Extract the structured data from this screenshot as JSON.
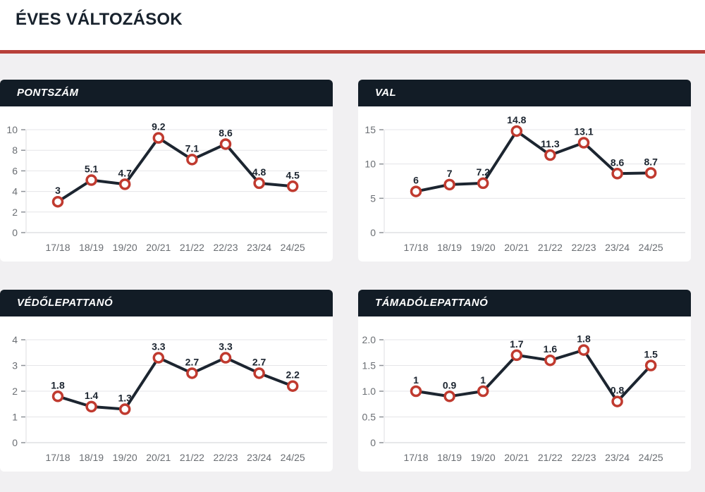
{
  "page_title": "ÉVES VÁLTOZÁSOK",
  "theme": {
    "page_background": "#f1f0f2",
    "band_background": "#ffffff",
    "accent_red": "#b8403a",
    "marker_red": "#c03a2f",
    "panel_header_bg": "#121c26",
    "panel_header_text": "#ffffff",
    "line_color": "#1c2530",
    "point_label_color": "#1c2530",
    "axis_text_color": "#6a6e73",
    "gridline_color": "#e5e5e8",
    "zero_line_color": "#cfd0d4",
    "axis_line_color": "#dcdde0",
    "tick_mark_color": "#8f9399"
  },
  "chart_data": [
    {
      "type": "line",
      "title": "PONTSZÁM",
      "categories": [
        "17/18",
        "18/19",
        "19/20",
        "20/21",
        "21/22",
        "22/23",
        "23/24",
        "24/25"
      ],
      "values": [
        3,
        5.1,
        4.7,
        9.2,
        7.1,
        8.6,
        4.8,
        4.5
      ],
      "point_labels": [
        "3",
        "5.1",
        "4.7",
        "9.2",
        "7.1",
        "8.6",
        "4.8",
        "4.5"
      ],
      "xlabel": "",
      "ylabel": "",
      "ylim": [
        0,
        10
      ],
      "ytick_values": [
        0,
        2,
        4,
        6,
        8,
        10
      ],
      "ytick_labels": [
        "0",
        "2",
        "4",
        "6",
        "8",
        "10"
      ],
      "grid": "horizontal",
      "legend": "none"
    },
    {
      "type": "line",
      "title": "VAL",
      "categories": [
        "17/18",
        "18/19",
        "19/20",
        "20/21",
        "21/22",
        "22/23",
        "23/24",
        "24/25"
      ],
      "values": [
        6,
        7,
        7.2,
        14.8,
        11.3,
        13.1,
        8.6,
        8.7
      ],
      "point_labels": [
        "6",
        "7",
        "7.2",
        "14.8",
        "11.3",
        "13.1",
        "8.6",
        "8.7"
      ],
      "xlabel": "",
      "ylabel": "",
      "ylim": [
        0,
        15
      ],
      "ytick_values": [
        0,
        5,
        10,
        15
      ],
      "ytick_labels": [
        "0",
        "5",
        "10",
        "15"
      ],
      "grid": "horizontal",
      "legend": "none"
    },
    {
      "type": "line",
      "title": "VÉDŐLEPATTANÓ",
      "categories": [
        "17/18",
        "18/19",
        "19/20",
        "20/21",
        "21/22",
        "22/23",
        "23/24",
        "24/25"
      ],
      "values": [
        1.8,
        1.4,
        1.3,
        3.3,
        2.7,
        3.3,
        2.7,
        2.2
      ],
      "point_labels": [
        "1.8",
        "1.4",
        "1.3",
        "3.3",
        "2.7",
        "3.3",
        "2.7",
        "2.2"
      ],
      "xlabel": "",
      "ylabel": "",
      "ylim": [
        0,
        4
      ],
      "ytick_values": [
        0,
        1,
        2,
        3,
        4
      ],
      "ytick_labels": [
        "0",
        "1",
        "2",
        "3",
        "4"
      ],
      "grid": "horizontal",
      "legend": "none"
    },
    {
      "type": "line",
      "title": "TÁMADÓLEPATTANÓ",
      "categories": [
        "17/18",
        "18/19",
        "19/20",
        "20/21",
        "21/22",
        "22/23",
        "23/24",
        "24/25"
      ],
      "values": [
        1,
        0.9,
        1,
        1.7,
        1.6,
        1.8,
        0.8,
        1.5
      ],
      "point_labels": [
        "1",
        "0.9",
        "1",
        "1.7",
        "1.6",
        "1.8",
        "0.8",
        "1.5"
      ],
      "xlabel": "",
      "ylabel": "",
      "ylim": [
        0,
        2
      ],
      "ytick_values": [
        0,
        0.5,
        1.0,
        1.5,
        2.0
      ],
      "ytick_labels": [
        "0",
        "0.5",
        "1.0",
        "1.5",
        "2.0"
      ],
      "grid": "horizontal",
      "legend": "none"
    }
  ]
}
